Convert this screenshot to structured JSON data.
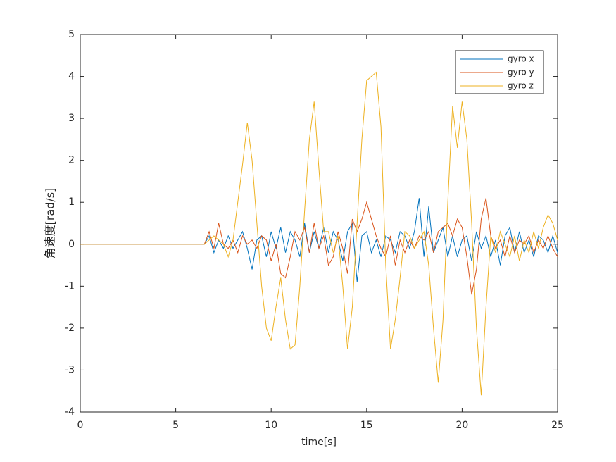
{
  "chart_data": {
    "type": "line",
    "xlabel": "time[s]",
    "ylabel": "角速度[rad/s]",
    "xlim": [
      0,
      25
    ],
    "ylim": [
      -4,
      5
    ],
    "xticks": [
      0,
      5,
      10,
      15,
      20,
      25
    ],
    "yticks": [
      -4,
      -3,
      -2,
      -1,
      0,
      1,
      2,
      3,
      4,
      5
    ],
    "legend": "upper right",
    "x": [
      0,
      0.25,
      0.5,
      0.75,
      1,
      1.25,
      1.5,
      1.75,
      2,
      2.25,
      2.5,
      2.75,
      3,
      3.25,
      3.5,
      3.75,
      4,
      4.25,
      4.5,
      4.75,
      5,
      5.25,
      5.5,
      5.75,
      6,
      6.25,
      6.5,
      6.75,
      7,
      7.25,
      7.5,
      7.75,
      8,
      8.25,
      8.5,
      8.75,
      9,
      9.25,
      9.5,
      9.75,
      10,
      10.25,
      10.5,
      10.75,
      11,
      11.25,
      11.5,
      11.75,
      12,
      12.25,
      12.5,
      12.75,
      13,
      13.25,
      13.5,
      13.75,
      14,
      14.25,
      14.5,
      14.75,
      15,
      15.25,
      15.5,
      15.75,
      16,
      16.25,
      16.5,
      16.75,
      17,
      17.25,
      17.5,
      17.75,
      18,
      18.25,
      18.5,
      18.75,
      19,
      19.25,
      19.5,
      19.75,
      20,
      20.25,
      20.5,
      20.75,
      21,
      21.25,
      21.5,
      21.75,
      22,
      22.25,
      22.5,
      22.75,
      23,
      23.25,
      23.5,
      23.75,
      24,
      24.25,
      24.5,
      24.75,
      25
    ],
    "series": [
      {
        "name": "gyro x",
        "color": "#0072BD",
        "values": [
          0,
          0,
          0,
          0,
          0,
          0,
          0,
          0,
          0,
          0,
          0,
          0,
          0,
          0,
          0,
          0,
          0,
          0,
          0,
          0,
          0,
          0,
          0,
          0,
          0,
          0,
          0,
          0.2,
          -0.2,
          0.1,
          -0.1,
          0.2,
          -0.1,
          0.1,
          0.3,
          -0.1,
          -0.6,
          0.1,
          0.2,
          -0.3,
          0.3,
          -0.1,
          0.4,
          -0.2,
          0.3,
          0.1,
          -0.3,
          0.5,
          -0.2,
          0.3,
          -0.1,
          0.4,
          -0.2,
          0.3,
          0.1,
          -0.4,
          0.3,
          0.5,
          -0.9,
          0.2,
          0.3,
          -0.2,
          0.1,
          -0.3,
          0.2,
          0.1,
          -0.2,
          0.3,
          0.2,
          -0.1,
          0.3,
          1.1,
          -0.3,
          0.9,
          -0.2,
          0.1,
          0.4,
          -0.3,
          0.2,
          -0.3,
          0.1,
          0.2,
          -0.4,
          0.3,
          -0.1,
          0.2,
          -0.3,
          0.1,
          -0.5,
          0.2,
          0.4,
          -0.2,
          0.3,
          -0.2,
          0.1,
          -0.3,
          0.2,
          0.1,
          -0.2,
          0.2,
          -0.2
        ]
      },
      {
        "name": "gyro y",
        "color": "#D95319",
        "values": [
          0,
          0,
          0,
          0,
          0,
          0,
          0,
          0,
          0,
          0,
          0,
          0,
          0,
          0,
          0,
          0,
          0,
          0,
          0,
          0,
          0,
          0,
          0,
          0,
          0,
          0,
          0,
          0.3,
          -0.1,
          0.5,
          0,
          -0.1,
          0.1,
          -0.2,
          0.2,
          0,
          0.1,
          -0.1,
          0.2,
          0.1,
          -0.4,
          0,
          -0.7,
          -0.8,
          -0.3,
          0.3,
          0.1,
          0.4,
          -0.2,
          0.5,
          -0.1,
          0.2,
          -0.5,
          -0.3,
          0.3,
          -0.1,
          -0.7,
          0.6,
          0.3,
          0.6,
          1,
          0.6,
          0.2,
          -0.1,
          -0.3,
          0.2,
          -0.5,
          0.1,
          -0.2,
          0.1,
          -0.1,
          0.2,
          0.1,
          0.3,
          -0.2,
          0.3,
          0.4,
          0.5,
          0.2,
          0.6,
          0.4,
          -0.3,
          -1.2,
          -0.6,
          0.6,
          1.1,
          0.2,
          -0.1,
          0.1,
          -0.3,
          0.2,
          -0.2,
          0.1,
          0,
          0.2,
          -0.2,
          0.1,
          -0.1,
          0.2,
          -0.1,
          -0.3
        ]
      },
      {
        "name": "gyro z",
        "color": "#EDB120",
        "values": [
          0,
          0,
          0,
          0,
          0,
          0,
          0,
          0,
          0,
          0,
          0,
          0,
          0,
          0,
          0,
          0,
          0,
          0,
          0,
          0,
          0,
          0,
          0,
          0,
          0,
          0,
          0,
          0.1,
          0.2,
          0.1,
          0,
          -0.3,
          0.1,
          1,
          1.9,
          2.9,
          2,
          0.5,
          -1,
          -2,
          -2.3,
          -1.5,
          -0.8,
          -1.8,
          -2.5,
          -2.4,
          -1,
          0.8,
          2.5,
          3.4,
          1.8,
          0.3,
          0.3,
          -0.2,
          0.2,
          -1,
          -2.5,
          -1.5,
          0.5,
          2.5,
          3.9,
          4,
          4.1,
          2.8,
          -0.5,
          -2.5,
          -1.8,
          -0.8,
          0.3,
          0.2,
          -0.1,
          0.1,
          0.3,
          -0.5,
          -2,
          -3.3,
          -1.8,
          1,
          3.3,
          2.3,
          3.4,
          2.5,
          0.5,
          -2,
          -3.6,
          -1.5,
          0.2,
          -0.2,
          0.3,
          0,
          -0.3,
          0.2,
          -0.4,
          0.1,
          -0.2,
          0.3,
          -0.1,
          0.4,
          0.7,
          0.5,
          0.1
        ]
      }
    ]
  }
}
